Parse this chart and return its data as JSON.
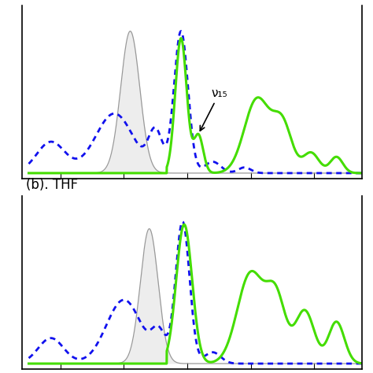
{
  "panel_b_label": "(b). THF",
  "annotation_text": "ν₁₅",
  "bg_color": "#ffffff",
  "line_green": "#44dd00",
  "line_blue": "#1111ee",
  "line_gray": "#999999",
  "fill_gray": "#cccccc",
  "fill_alpha": 0.35
}
